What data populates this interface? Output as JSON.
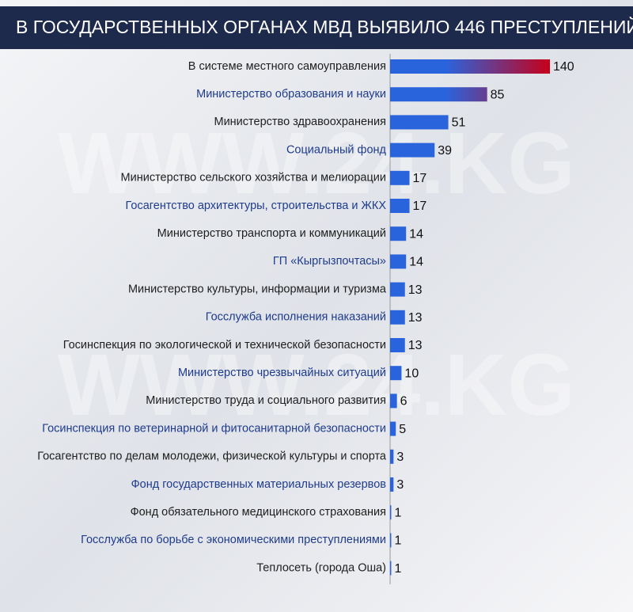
{
  "chart_data": {
    "type": "bar",
    "orientation": "horizontal",
    "title": "В ГОСУДАРСТВЕННЫХ ОРГАНАХ МВД ВЫЯВИЛО 446 ПРЕСТУПЛЕНИЙ",
    "watermark": "WWW.24.KG",
    "categories": [
      "В системе местного самоуправления",
      "Министерство образования и науки",
      "Министерство здравоохранения",
      "Социальный фонд",
      "Министерство сельского хозяйства и мелиорации",
      "Госагентство архитектуры, строительства и ЖКХ",
      "Министерство транспорта и коммуникаций",
      "ГП «Кыргызпочтасы»",
      "Министерство культуры, информации и туризма",
      "Госслужба исполнения наказаний",
      "Госинспекция по экологической и технической безопасности",
      "Министерство чрезвычайных ситуаций",
      "Министерство труда и социального развития",
      "Госинспекция по ветеринарной и фитосанитарной безопасности",
      "Госагентство по делам молодежи, физической культуры и спорта",
      "Фонд государственных материальных резервов",
      "Фонд обязательного медицинского страхования",
      "Госслужба по борьбе с экономическими преступлениями",
      "Теплосеть (города Оша)"
    ],
    "values": [
      140,
      85,
      51,
      39,
      17,
      17,
      14,
      14,
      13,
      13,
      13,
      10,
      6,
      5,
      3,
      3,
      1,
      1,
      1
    ],
    "xlim": [
      0,
      140
    ],
    "colors": [
      "#2a64dc",
      "#c6001a"
    ],
    "label_colors": [
      "#1e1e1e",
      "#1f3c8c"
    ]
  }
}
